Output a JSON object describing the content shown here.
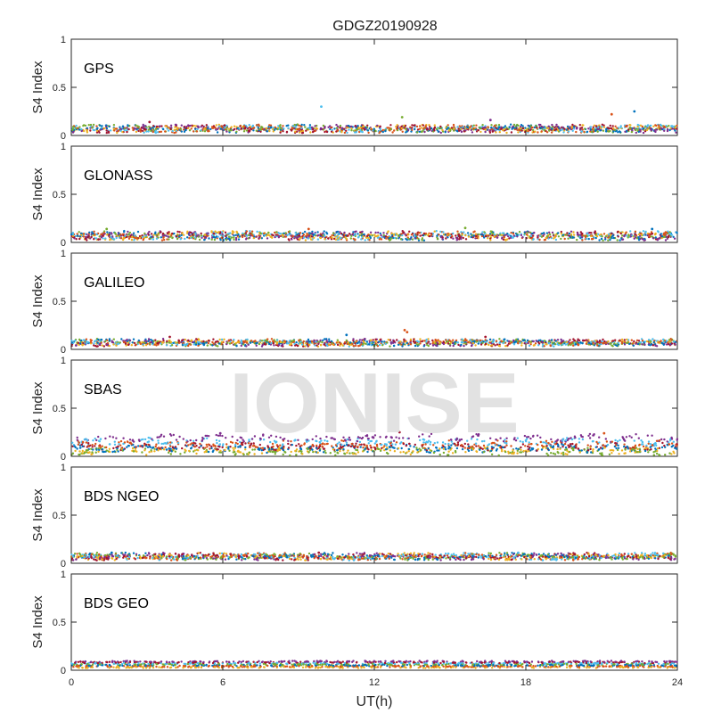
{
  "title": "GDGZ20190928",
  "watermark": "IONISE",
  "chart_data": {
    "type": "scatter",
    "xlabel": "UT(h)",
    "ylabel": "S4 Index",
    "xlim": [
      0,
      24
    ],
    "ylim": [
      0,
      1
    ],
    "xticks": [
      "0",
      "6",
      "12",
      "18",
      "24"
    ],
    "yticks": [
      "0",
      "0.5",
      "1"
    ],
    "grid": false,
    "colors": [
      "#0072BD",
      "#D95319",
      "#EDB120",
      "#7E2F8E",
      "#77AC30",
      "#4DBEEE",
      "#A2142F"
    ],
    "panels": [
      {
        "label": "GPS",
        "base": 0.07,
        "spread": 0.025,
        "outliers": [
          [
            9.9,
            0.3
          ],
          [
            13.1,
            0.19
          ],
          [
            21.4,
            0.22
          ],
          [
            22.3,
            0.25
          ],
          [
            3.1,
            0.14
          ],
          [
            16.6,
            0.16
          ]
        ],
        "series_profile": "mixed"
      },
      {
        "label": "GLONASS",
        "base": 0.07,
        "spread": 0.03,
        "outliers": [
          [
            1.4,
            0.14
          ],
          [
            9.4,
            0.14
          ],
          [
            15.6,
            0.15
          ],
          [
            23.0,
            0.14
          ]
        ],
        "series_profile": "mixed"
      },
      {
        "label": "GALILEO",
        "base": 0.07,
        "spread": 0.02,
        "outliers": [
          [
            13.2,
            0.2
          ],
          [
            13.3,
            0.18
          ],
          [
            3.9,
            0.13
          ],
          [
            10.9,
            0.15
          ],
          [
            16.4,
            0.13
          ]
        ],
        "series_profile": "mixed"
      },
      {
        "label": "SBAS",
        "base": 0.14,
        "spread": 0.07,
        "outliers": [
          [
            13.0,
            0.25
          ],
          [
            5.9,
            0.24
          ],
          [
            21.1,
            0.24
          ]
        ],
        "series_profile": "banded"
      },
      {
        "label": "BDS NGEO",
        "base": 0.07,
        "spread": 0.02,
        "outliers": [
          [
            1.6,
            0.11
          ],
          [
            9.8,
            0.11
          ],
          [
            17.7,
            0.11
          ]
        ],
        "series_profile": "mixed"
      },
      {
        "label": "BDS GEO",
        "base": 0.07,
        "spread": 0.02,
        "outliers": [],
        "series_profile": "geo"
      }
    ]
  }
}
